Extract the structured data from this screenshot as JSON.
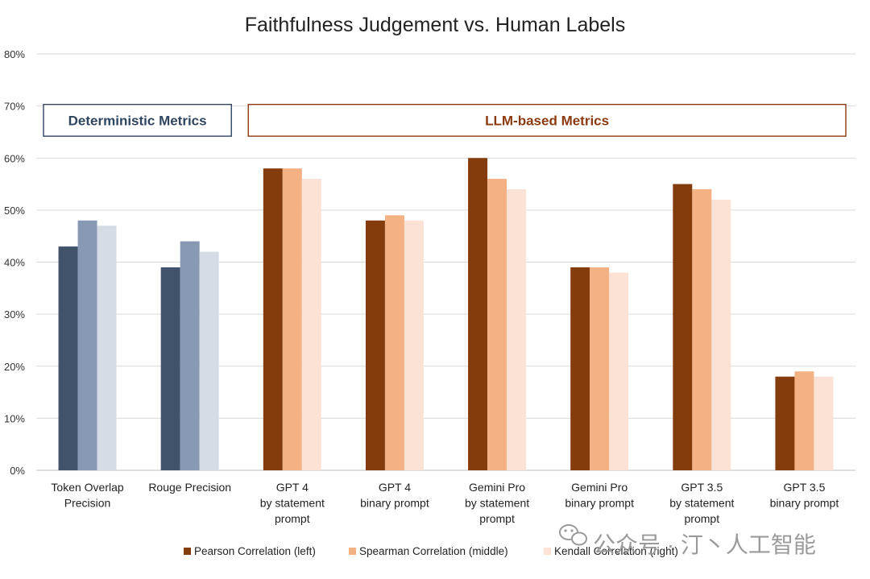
{
  "chart_data": {
    "type": "bar",
    "title": "Faithfulness Judgement vs. Human Labels",
    "xlabel": "",
    "ylabel": "",
    "ylim": [
      0,
      80
    ],
    "yticks": [
      0,
      10,
      20,
      30,
      40,
      50,
      60,
      70,
      80
    ],
    "ytick_labels": [
      "0%",
      "10%",
      "20%",
      "30%",
      "40%",
      "50%",
      "60%",
      "70%",
      "80%"
    ],
    "grid": true,
    "legend_position": "bottom",
    "categories": [
      [
        "Token Overlap",
        "Precision"
      ],
      [
        "Rouge Precision"
      ],
      [
        "GPT 4",
        "by statement",
        "prompt"
      ],
      [
        "GPT 4",
        "binary prompt"
      ],
      [
        "Gemini Pro",
        "by statement",
        "prompt"
      ],
      [
        "Gemini Pro",
        "binary prompt"
      ],
      [
        "GPT 3.5",
        "by statement",
        "prompt"
      ],
      [
        "GPT 3.5",
        "binary prompt"
      ]
    ],
    "series": [
      {
        "name": "Pearson Correlation (left)",
        "values": [
          43,
          39,
          58,
          48,
          60,
          39,
          55,
          18
        ]
      },
      {
        "name": "Spearman Correlation (middle)",
        "values": [
          48,
          44,
          58,
          49,
          56,
          39,
          54,
          19
        ]
      },
      {
        "name": "Kendall Correlation (right)",
        "values": [
          47,
          42,
          56,
          48,
          54,
          38,
          52,
          18
        ]
      }
    ],
    "groups": [
      {
        "label": "Deterministic Metrics",
        "start": 0,
        "end": 1,
        "color": "#2f4560",
        "series_colors": [
          "#41526b",
          "#8799b3",
          "#d6dce6"
        ]
      },
      {
        "label": "LLM-based Metrics",
        "start": 2,
        "end": 7,
        "color": "#8b3a10",
        "series_colors": [
          "#843c0c",
          "#f4b183",
          "#fbe2d5"
        ]
      }
    ],
    "legend_colors": [
      "#843c0c",
      "#f4b183",
      "#fbe2d5"
    ]
  },
  "watermark": "公众号 · 汀丶人工智能"
}
